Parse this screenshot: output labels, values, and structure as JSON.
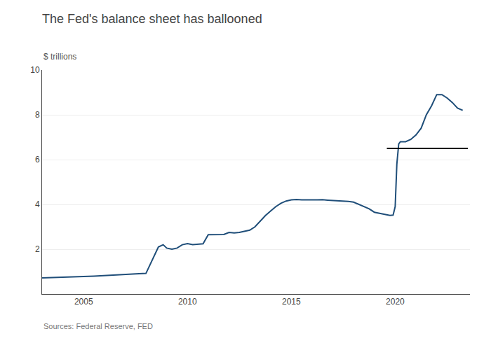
{
  "chart_data": {
    "type": "line",
    "title": "The Fed's balance sheet has ballooned",
    "subtitle": "$ trillions",
    "source": "Sources: Federal Reserve, FED",
    "x": [
      2003.0,
      2003.5,
      2004.0,
      2004.5,
      2005.0,
      2005.5,
      2006.0,
      2006.5,
      2007.0,
      2007.5,
      2008.0,
      2008.3,
      2008.6,
      2008.83,
      2009.0,
      2009.25,
      2009.5,
      2009.75,
      2010.0,
      2010.25,
      2010.5,
      2010.75,
      2011.0,
      2011.25,
      2011.5,
      2011.75,
      2012.0,
      2012.25,
      2012.5,
      2012.75,
      2013.0,
      2013.25,
      2013.5,
      2013.75,
      2014.0,
      2014.25,
      2014.5,
      2014.75,
      2015.0,
      2015.25,
      2015.5,
      2015.75,
      2016.0,
      2016.25,
      2016.5,
      2016.75,
      2017.0,
      2017.25,
      2017.5,
      2017.75,
      2018.0,
      2018.25,
      2018.5,
      2018.75,
      2019.0,
      2019.25,
      2019.5,
      2019.6,
      2019.75,
      2019.9,
      2020.0,
      2020.08,
      2020.17,
      2020.25,
      2020.5,
      2020.75,
      2021.0,
      2021.25,
      2021.5,
      2021.75,
      2022.0,
      2022.25,
      2022.5,
      2022.75,
      2023.0,
      2023.25
    ],
    "series": [
      {
        "color": "#1f4e79",
        "values": [
          0.72,
          0.73,
          0.75,
          0.76,
          0.78,
          0.8,
          0.83,
          0.85,
          0.87,
          0.9,
          0.92,
          1.5,
          2.1,
          2.2,
          2.05,
          2.0,
          2.05,
          2.2,
          2.25,
          2.2,
          2.22,
          2.24,
          2.65,
          2.65,
          2.64,
          2.66,
          2.75,
          2.73,
          2.75,
          2.8,
          2.85,
          3.0,
          3.25,
          3.5,
          3.7,
          3.9,
          4.05,
          4.15,
          4.2,
          4.22,
          4.2,
          4.21,
          4.2,
          4.2,
          4.21,
          4.19,
          4.18,
          4.17,
          4.15,
          4.13,
          4.1,
          4.0,
          3.9,
          3.8,
          3.65,
          3.6,
          3.55,
          3.53,
          3.51,
          3.52,
          3.9,
          5.8,
          6.7,
          6.8,
          6.8,
          6.9,
          7.1,
          7.4,
          8.0,
          8.4,
          8.9,
          8.9,
          8.75,
          8.55,
          8.3,
          8.2
        ]
      }
    ],
    "annotation_line": {
      "x": [
        2019.6,
        2023.5
      ],
      "y": 6.5,
      "color": "#000000"
    },
    "xlim": [
      2003.0,
      2023.6
    ],
    "xticks": [
      2005,
      2010,
      2015,
      2020
    ],
    "ylim": [
      0,
      10
    ],
    "yticks": [
      2,
      4,
      6,
      8,
      10
    ],
    "grid": true
  }
}
